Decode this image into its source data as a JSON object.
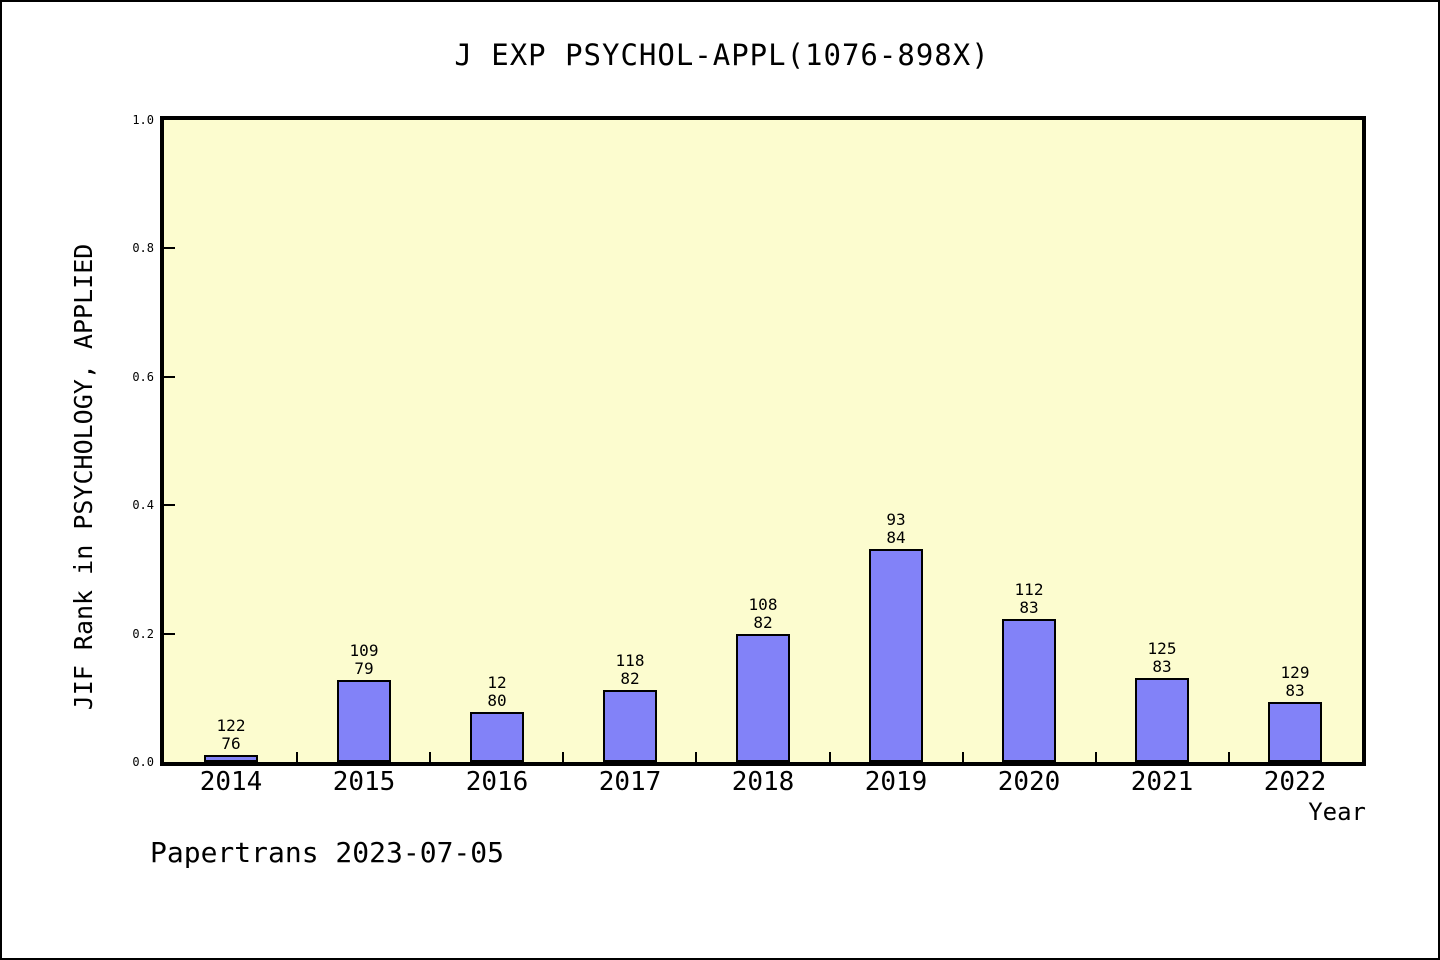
{
  "page": {
    "footer": "Papertrans 2023-07-05"
  },
  "chart_data": {
    "type": "bar",
    "title": "J EXP PSYCHOL-APPL(1076-898X)",
    "xlabel": "Year",
    "ylabel": "JIF Rank in PSYCHOLOGY, APPLIED",
    "categories": [
      "2014",
      "2015",
      "2016",
      "2017",
      "2018",
      "2019",
      "2020",
      "2021",
      "2022"
    ],
    "values": [
      0.011,
      0.128,
      0.078,
      0.112,
      0.2,
      0.331,
      0.223,
      0.131,
      0.093
    ],
    "bar_labels": [
      [
        "122",
        "76"
      ],
      [
        "109",
        "79"
      ],
      [
        "12",
        "80"
      ],
      [
        "118",
        "82"
      ],
      [
        "108",
        "82"
      ],
      [
        "93",
        "84"
      ],
      [
        "112",
        "83"
      ],
      [
        "125",
        "83"
      ],
      [
        "129",
        "83"
      ]
    ],
    "ylim": [
      0.0,
      1.0
    ],
    "ytick_labels": [
      "0.0",
      "0.2",
      "0.4",
      "0.6",
      "0.8",
      "1.0"
    ],
    "ytick_values": [
      0.0,
      0.2,
      0.4,
      0.6,
      0.8,
      1.0
    ],
    "grid": false,
    "legend_position": "none",
    "colors": {
      "bar_fill": "#8282f8",
      "bar_border": "#000000",
      "plot_background": "#fcfccf",
      "frame": "#000000",
      "page_background": "#ffffff"
    }
  }
}
